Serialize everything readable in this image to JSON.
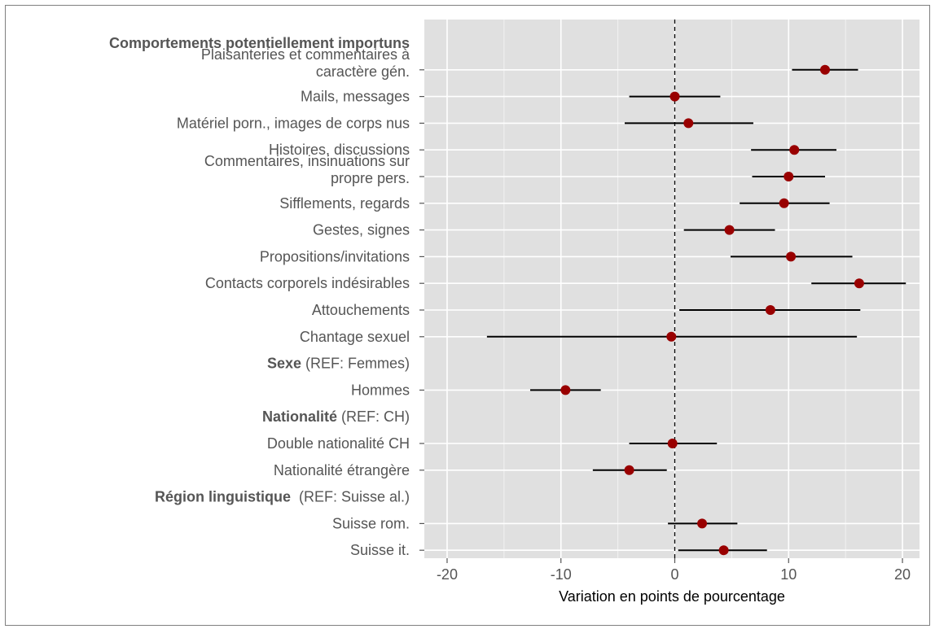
{
  "chart_data": {
    "type": "scatter",
    "subtype": "forest-plot-with-confidence-intervals",
    "xlabel": "Variation en points de pourcentage",
    "xlim": [
      -22,
      21.5
    ],
    "xticks": [
      -20,
      -10,
      0,
      10,
      20
    ],
    "xtick_labels": [
      "-20",
      "-10",
      "0",
      "10",
      "20"
    ],
    "reference_line": 0,
    "grid": true,
    "point_color": "#990000",
    "panel_color": "#e0e0e0",
    "rows": [
      {
        "kind": "header",
        "bold": "Comportements potentiellement importuns",
        "rest": ""
      },
      {
        "kind": "item",
        "lines": [
          "Plaisanteries et commentaires à",
          "caractère gén."
        ],
        "estimate": 13.2,
        "lower": 10.3,
        "upper": 16.1
      },
      {
        "kind": "item",
        "lines": [
          "Mails, messages"
        ],
        "estimate": 0.0,
        "lower": -4.0,
        "upper": 4.0
      },
      {
        "kind": "item",
        "lines": [
          "Matériel porn., images de corps nus"
        ],
        "estimate": 1.2,
        "lower": -4.4,
        "upper": 6.9
      },
      {
        "kind": "item",
        "lines": [
          "Histoires, discussions"
        ],
        "estimate": 10.5,
        "lower": 6.7,
        "upper": 14.2
      },
      {
        "kind": "item",
        "lines": [
          "Commentaires, insinuations sur",
          "propre pers."
        ],
        "estimate": 10.0,
        "lower": 6.8,
        "upper": 13.2
      },
      {
        "kind": "item",
        "lines": [
          "Sifflements, regards"
        ],
        "estimate": 9.6,
        "lower": 5.7,
        "upper": 13.6
      },
      {
        "kind": "item",
        "lines": [
          "Gestes, signes"
        ],
        "estimate": 4.8,
        "lower": 0.8,
        "upper": 8.8
      },
      {
        "kind": "item",
        "lines": [
          "Propositions/invitations"
        ],
        "estimate": 10.2,
        "lower": 4.9,
        "upper": 15.6
      },
      {
        "kind": "item",
        "lines": [
          "Contacts corporels indésirables"
        ],
        "estimate": 16.2,
        "lower": 12.0,
        "upper": 20.3
      },
      {
        "kind": "item",
        "lines": [
          "Attouchements"
        ],
        "estimate": 8.4,
        "lower": 0.4,
        "upper": 16.3
      },
      {
        "kind": "item",
        "lines": [
          "Chantage sexuel"
        ],
        "estimate": -0.3,
        "lower": -16.5,
        "upper": 16.0
      },
      {
        "kind": "header",
        "bold": "Sexe",
        "rest": " (REF: Femmes)"
      },
      {
        "kind": "item",
        "lines": [
          "Hommes"
        ],
        "estimate": -9.6,
        "lower": -12.7,
        "upper": -6.5
      },
      {
        "kind": "header",
        "bold": "Nationalité",
        "rest": " (REF: CH)"
      },
      {
        "kind": "item",
        "lines": [
          "Double nationalité CH"
        ],
        "estimate": -0.2,
        "lower": -4.0,
        "upper": 3.7
      },
      {
        "kind": "item",
        "lines": [
          "Nationalité étrangère"
        ],
        "estimate": -4.0,
        "lower": -7.2,
        "upper": -0.7
      },
      {
        "kind": "header",
        "bold": "Région linguistique",
        "rest": "  (REF: Suisse al.)"
      },
      {
        "kind": "item",
        "lines": [
          "Suisse rom."
        ],
        "estimate": 2.4,
        "lower": -0.6,
        "upper": 5.5
      },
      {
        "kind": "item",
        "lines": [
          "Suisse it."
        ],
        "estimate": 4.3,
        "lower": 0.3,
        "upper": 8.1
      }
    ]
  }
}
